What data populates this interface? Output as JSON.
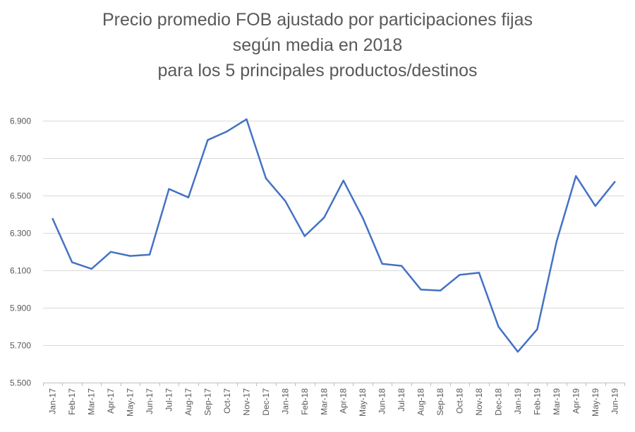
{
  "chart_data": {
    "type": "line",
    "title_lines": [
      "Precio promedio FOB ajustado por participaciones fijas",
      "según media en 2018",
      "para los 5 principales productos/destinos"
    ],
    "xlabel": "",
    "ylabel": "",
    "categories": [
      "Jan-17",
      "Feb-17",
      "Mar-17",
      "Apr-17",
      "May-17",
      "Jun-17",
      "Jul-17",
      "Aug-17",
      "Sep-17",
      "Oct-17",
      "Nov-17",
      "Dec-17",
      "Jan-18",
      "Feb-18",
      "Mar-18",
      "Apr-18",
      "May-18",
      "Jun-18",
      "Jul-18",
      "Aug-18",
      "Sep-18",
      "Oct-18",
      "Nov-18",
      "Dec-18",
      "Jan-19",
      "Feb-19",
      "Mar-19",
      "Apr-19",
      "May-19",
      "Jun-19"
    ],
    "series": [
      {
        "values": [
          6.375,
          6.143,
          6.108,
          6.199,
          6.177,
          6.184,
          6.535,
          6.49,
          6.797,
          6.843,
          6.908,
          6.592,
          6.471,
          6.283,
          6.382,
          6.58,
          6.38,
          6.135,
          6.124,
          5.997,
          5.992,
          6.076,
          6.087,
          5.799,
          5.665,
          5.785,
          6.255,
          6.604,
          6.444,
          6.573
        ],
        "color": "#4472C4"
      }
    ],
    "ylim": [
      5.5,
      6.9
    ],
    "yticks": [
      "5.500",
      "5.700",
      "5.900",
      "6.100",
      "6.300",
      "6.500",
      "6.700",
      "6.900"
    ],
    "ytick_values": [
      5.5,
      5.7,
      5.9,
      6.1,
      6.3,
      6.5,
      6.7,
      6.9
    ],
    "grid": true,
    "legend": "none"
  }
}
